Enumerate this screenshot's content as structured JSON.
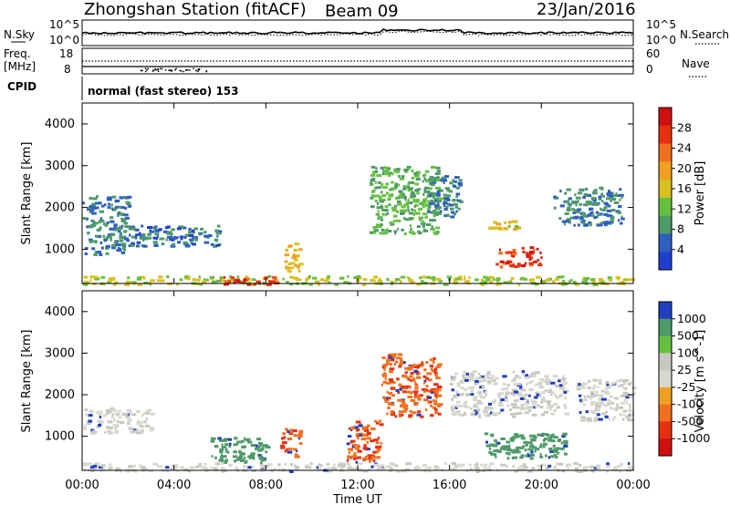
{
  "header": {
    "station": "Zhongshan Station (fitACF)",
    "beam": "Beam 09",
    "date": "23/Jan/2016"
  },
  "status_panels": {
    "nsky_label": "N.Sky",
    "nsearch_label": "N.Search",
    "nsky_ticks": [
      "10^5",
      "10^0"
    ],
    "nsearch_ticks": [
      "10^5",
      "10^0"
    ],
    "freq_label_1": "Freq.",
    "freq_label_2": "[MHz]",
    "freq_ticks": [
      "18",
      "8"
    ],
    "nave_label": "Nave",
    "nave_ticks": [
      "60",
      "0"
    ],
    "cpid_label": "CPID",
    "cpid_text": "normal (fast stereo) 153"
  },
  "colors": {
    "power_scale": [
      "#1f3fd0",
      "#2f5fc0",
      "#4f9a6a",
      "#66c040",
      "#d8c020",
      "#f0a020",
      "#f07020",
      "#e83010",
      "#d01010"
    ],
    "velocity_scale": [
      "#2040c0",
      "#4f9a6a",
      "#66c040",
      "#c8c8c0",
      "#d8d8d0",
      "#f0a020",
      "#f07020",
      "#e83010",
      "#d01010"
    ]
  },
  "chart_data": [
    {
      "type": "heatmap",
      "title": "",
      "xlabel": "",
      "ylabel": "Slant Range [km]",
      "x_ticks": [
        "00:00",
        "04:00",
        "08:00",
        "12:00",
        "16:00",
        "20:00",
        "00:00"
      ],
      "x_range_hours": [
        0,
        24
      ],
      "ylim": [
        180,
        4500
      ],
      "y_ticks": [
        1000,
        2000,
        3000,
        4000
      ],
      "colorbar": {
        "label": "Power [dB]",
        "ticks": [
          4,
          8,
          12,
          16,
          20,
          24,
          28
        ],
        "range": [
          0,
          32
        ]
      },
      "features": [
        {
          "t_start": 0.0,
          "t_end": 24.0,
          "range_min": 180,
          "range_max": 380,
          "power_db": 14
        },
        {
          "t_start": 0.0,
          "t_end": 2.0,
          "range_min": 900,
          "range_max": 2300,
          "power_db": 6
        },
        {
          "t_start": 2.0,
          "t_end": 6.0,
          "range_min": 1100,
          "range_max": 1600,
          "power_db": 5
        },
        {
          "t_start": 6.0,
          "t_end": 8.5,
          "range_min": 180,
          "range_max": 380,
          "power_db": 28
        },
        {
          "t_start": 8.8,
          "t_end": 9.5,
          "range_min": 500,
          "range_max": 1200,
          "power_db": 18
        },
        {
          "t_start": 12.5,
          "t_end": 15.5,
          "range_min": 1400,
          "range_max": 3000,
          "power_db": 10
        },
        {
          "t_start": 15.0,
          "t_end": 16.5,
          "range_min": 1800,
          "range_max": 2800,
          "power_db": 6
        },
        {
          "t_start": 17.5,
          "t_end": 19.0,
          "range_min": 1500,
          "range_max": 1700,
          "power_db": 16
        },
        {
          "t_start": 18.0,
          "t_end": 20.0,
          "range_min": 600,
          "range_max": 1100,
          "power_db": 28
        },
        {
          "t_start": 20.5,
          "t_end": 23.5,
          "range_min": 1600,
          "range_max": 2500,
          "power_db": 6
        }
      ]
    },
    {
      "type": "heatmap",
      "title": "",
      "xlabel": "Time UT",
      "ylabel": "Slant Range [km]",
      "x_ticks": [
        "00:00",
        "04:00",
        "08:00",
        "12:00",
        "16:00",
        "20:00",
        "00:00"
      ],
      "x_range_hours": [
        0,
        24
      ],
      "ylim": [
        180,
        4500
      ],
      "y_ticks": [
        1000,
        2000,
        3000,
        4000
      ],
      "colorbar": {
        "label": "Velocity [m s^-1]",
        "ticks": [
          "1000",
          "500",
          "100",
          "25",
          "-25",
          "-100",
          "-500",
          "-1000"
        ]
      },
      "features": [
        {
          "t_start": 0.0,
          "t_end": 24.0,
          "range_min": 180,
          "range_max": 380,
          "velocity": 0
        },
        {
          "t_start": 0.0,
          "t_end": 3.0,
          "range_min": 1100,
          "range_max": 1700,
          "velocity": 0
        },
        {
          "t_start": 5.5,
          "t_end": 8.0,
          "range_min": 400,
          "range_max": 1000,
          "velocity": 150
        },
        {
          "t_start": 8.5,
          "t_end": 9.5,
          "range_min": 500,
          "range_max": 1200,
          "velocity": -300
        },
        {
          "t_start": 11.5,
          "t_end": 13.0,
          "range_min": 400,
          "range_max": 1400,
          "velocity": -300
        },
        {
          "t_start": 13.0,
          "t_end": 15.5,
          "range_min": 1500,
          "range_max": 3000,
          "velocity": -300
        },
        {
          "t_start": 16.0,
          "t_end": 21.0,
          "range_min": 1500,
          "range_max": 2600,
          "velocity": 0
        },
        {
          "t_start": 17.5,
          "t_end": 21.0,
          "range_min": 500,
          "range_max": 1100,
          "velocity": 150
        },
        {
          "t_start": 21.5,
          "t_end": 24.0,
          "range_min": 1400,
          "range_max": 2400,
          "velocity": 0
        }
      ]
    }
  ]
}
